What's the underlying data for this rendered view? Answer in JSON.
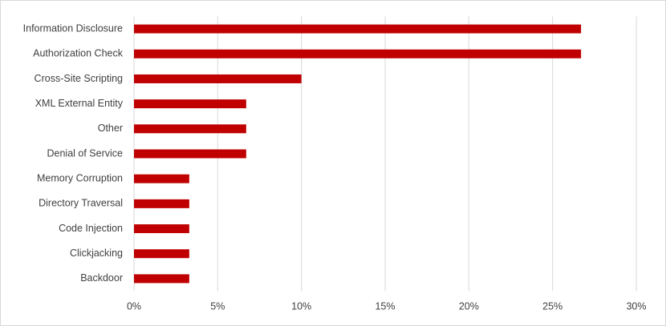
{
  "chart_data": {
    "type": "hbar",
    "categories": [
      "Information Disclosure",
      "Authorization Check",
      "Cross-Site Scripting",
      "XML External Entity",
      "Other",
      "Denial of Service",
      "Memory Corruption",
      "Directory Traversal",
      "Code Injection",
      "Clickjacking",
      "Backdoor"
    ],
    "values": [
      26.7,
      26.7,
      10,
      6.7,
      6.7,
      6.7,
      3.3,
      3.3,
      3.3,
      3.3,
      3.3
    ],
    "color": "#c00000",
    "xlim": [
      0,
      30
    ],
    "xticks": [
      {
        "value": 0,
        "label": "0%"
      },
      {
        "value": 5,
        "label": "5%"
      },
      {
        "value": 10,
        "label": "10%"
      },
      {
        "value": 15,
        "label": "15%"
      },
      {
        "value": 20,
        "label": "20%"
      },
      {
        "value": 25,
        "label": "25%"
      },
      {
        "value": 30,
        "label": "30%"
      }
    ],
    "grid": true
  }
}
